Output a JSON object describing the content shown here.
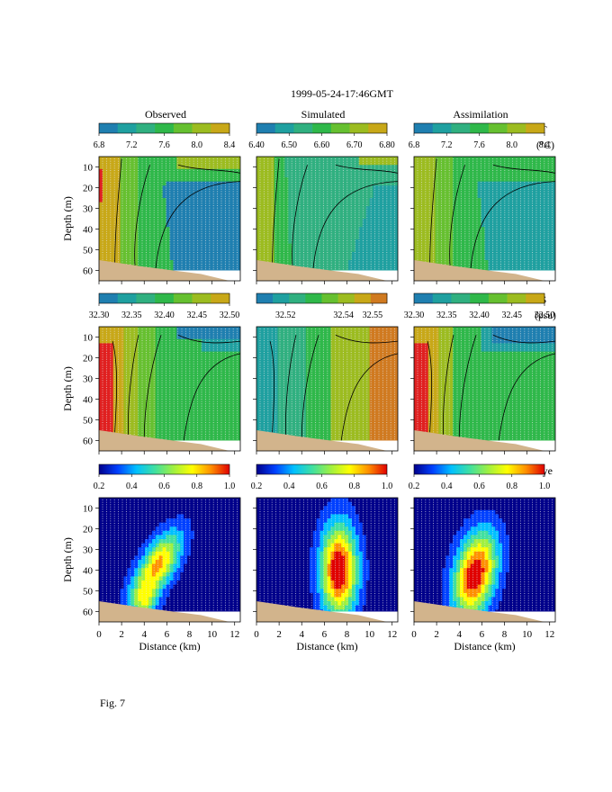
{
  "figure": {
    "title": "1999-05-24-17:46GMT",
    "caption": "Fig. 7"
  },
  "colors": {
    "sand": "#d2b48c",
    "dots": "#e8e8e8",
    "contour": "#000000",
    "temp_scale": [
      "#1f7fb0",
      "#1fa0a0",
      "#30b080",
      "#2fb84a",
      "#66c030",
      "#9cbc20",
      "#c8a818"
    ],
    "sal_obs_scale": [
      "#1f7fb0",
      "#1fa0a0",
      "#30b080",
      "#2fb84a",
      "#66c030",
      "#9cbc20",
      "#c8a818"
    ],
    "sal_sim_scale": [
      "#1f7fb0",
      "#1fa0a0",
      "#30b080",
      "#2fb84a",
      "#66c030",
      "#9cbc20",
      "#c8a818",
      "#d07a20"
    ],
    "dye_scale": [
      "#00008b",
      "#0040ff",
      "#00c0ff",
      "#40e0a0",
      "#a0f040",
      "#ffff00",
      "#ff9000",
      "#e00000"
    ]
  },
  "chart_data": {
    "type": "heatmap",
    "column_titles": [
      "Observed",
      "Simulated",
      "Assimilation"
    ],
    "x": {
      "label": "Distance (km)",
      "range": [
        0,
        12.5
      ],
      "ticks": [
        0,
        2,
        4,
        6,
        8,
        10,
        12
      ]
    },
    "y": {
      "label": "Depth (m)",
      "range": [
        5,
        65
      ],
      "inverted": true,
      "ticks": [
        10,
        20,
        30,
        40,
        50,
        60
      ]
    },
    "rows": [
      {
        "variable": "T",
        "unit": "(°C)",
        "colorbars": [
          {
            "range": [
              6.8,
              8.4
            ],
            "tick_labels": [
              "6.8",
              "7.2",
              "7.6",
              "8.0",
              "8.4"
            ]
          },
          {
            "range": [
              6.4,
              6.8
            ],
            "tick_labels": [
              "6.40",
              "6.50",
              "6.60",
              "6.70",
              "6.80"
            ]
          },
          {
            "range": [
              6.8,
              8.4
            ],
            "tick_labels": [
              "6.8",
              "7.2",
              "7.6",
              "8.0",
              "8.4"
            ]
          }
        ]
      },
      {
        "variable": "S",
        "unit": "(psu)",
        "colorbars": [
          {
            "range": [
              32.3,
              32.5
            ],
            "tick_labels": [
              "32.30",
              "32.35",
              "32.40",
              "32.45",
              "32.50"
            ]
          },
          {
            "range": [
              32.51,
              32.555
            ],
            "tick_labels": [
              "32.52",
              "32.54",
              "32.55"
            ]
          },
          {
            "range": [
              32.3,
              32.5
            ],
            "tick_labels": [
              "32.30",
              "32.35",
              "32.40",
              "32.45",
              "32.50"
            ]
          }
        ]
      },
      {
        "variable": "Dye",
        "unit": "",
        "colorbars": [
          {
            "range": [
              0.2,
              1.0
            ],
            "tick_labels": [
              "0.2",
              "0.4",
              "0.6",
              "0.8",
              "1.0"
            ]
          },
          {
            "range": [
              0.2,
              1.0
            ],
            "tick_labels": [
              "0.2",
              "0.4",
              "0.6",
              "0.8",
              "1.0"
            ]
          },
          {
            "range": [
              0.2,
              1.0
            ],
            "tick_labels": [
              "0.2",
              "0.4",
              "0.6",
              "0.8",
              "1.0"
            ]
          }
        ]
      }
    ]
  }
}
